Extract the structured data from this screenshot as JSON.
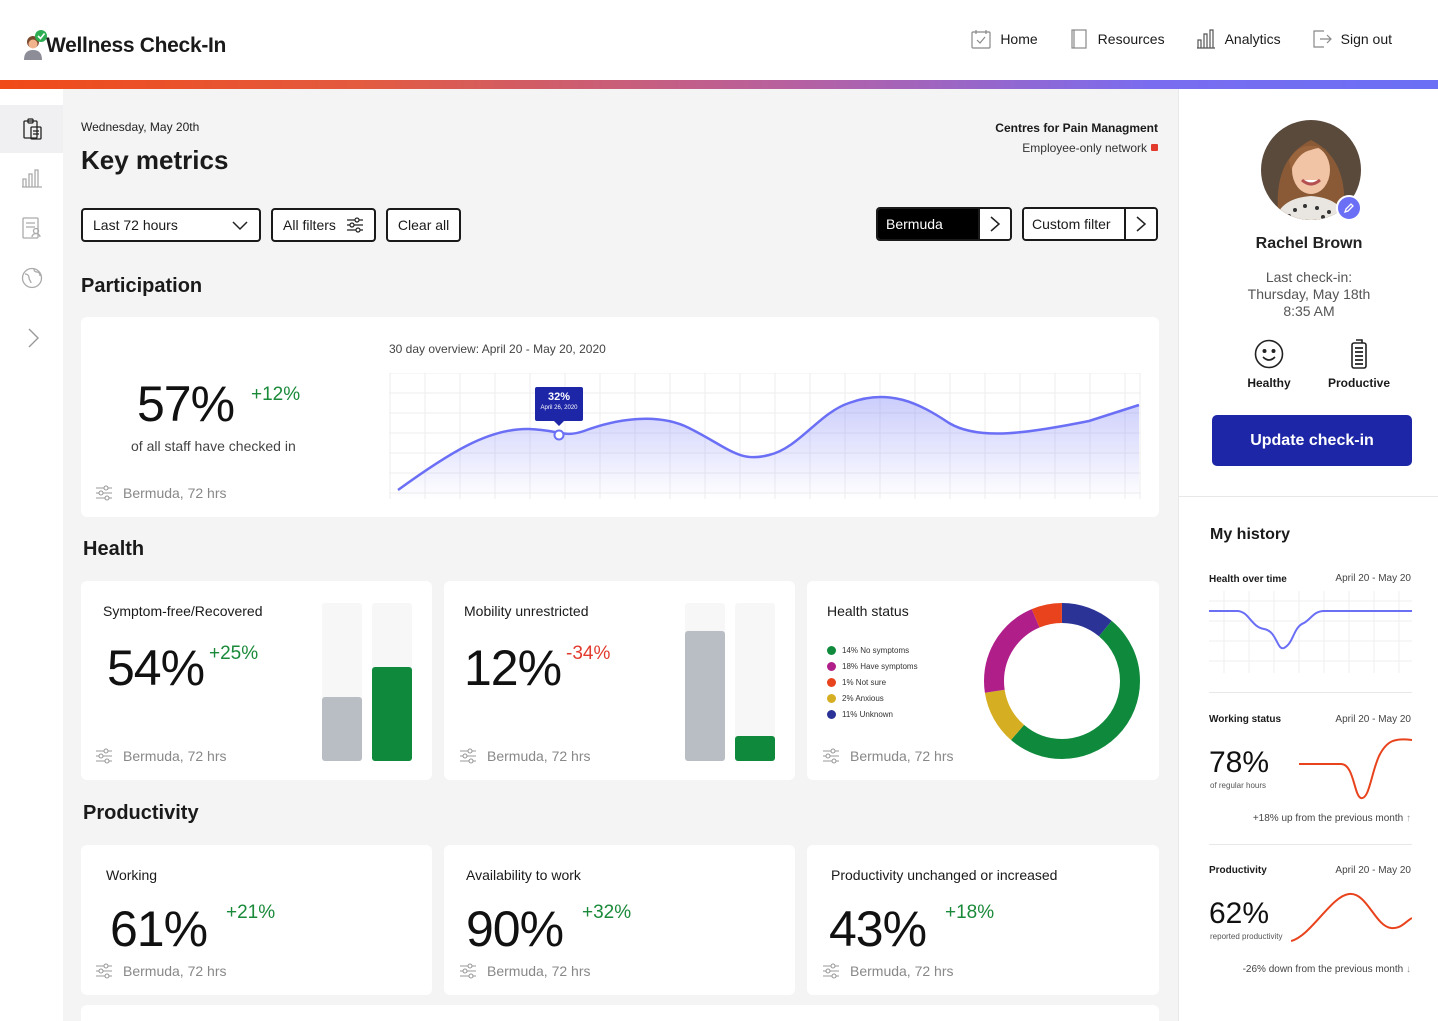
{
  "app": {
    "brand": "Wellness Check-In"
  },
  "topnav": [
    {
      "label": "Home",
      "icon": "calendar-check-icon"
    },
    {
      "label": "Resources",
      "icon": "book-icon"
    },
    {
      "label": "Analytics",
      "icon": "bar-chart-icon"
    },
    {
      "label": "Sign out",
      "icon": "sign-out-icon"
    }
  ],
  "sidebar": [
    {
      "icon": "clipboard-icon",
      "active": true
    },
    {
      "icon": "bar-chart-icon"
    },
    {
      "icon": "report-user-icon"
    },
    {
      "icon": "globe-icon"
    },
    {
      "icon": "chevron-right-icon"
    }
  ],
  "header": {
    "date": "Wednesday, May 20th",
    "title": "Key metrics",
    "org": "Centres for Pain Managment",
    "network": "Employee-only network"
  },
  "filters": {
    "range": "Last 72 hours",
    "all_filters": "All filters",
    "clear_all": "Clear all",
    "location": "Bermuda",
    "custom": "Custom filter"
  },
  "participation": {
    "heading": "Participation",
    "value": "57%",
    "change": "+12%",
    "caption": "of all staff have checked in",
    "footer": "Bermuda, 72 hrs",
    "chart_title": "30 day overview: April 20 - May 20, 2020",
    "tooltip_value": "32%",
    "tooltip_date": "April 26, 2020"
  },
  "health": {
    "heading": "Health",
    "symptom": {
      "title": "Symptom-free/Recovered",
      "value": "54%",
      "change": "+25%",
      "footer": "Bermuda, 72 hrs"
    },
    "mobility": {
      "title": "Mobility unrestricted",
      "value": "12%",
      "change": "-34%",
      "footer": "Bermuda, 72 hrs"
    },
    "status": {
      "title": "Health status",
      "footer": "Bermuda, 72 hrs",
      "legend": [
        {
          "label": "14% No symptoms",
          "color": "#0f8a3c"
        },
        {
          "label": "18% Have symptoms",
          "color": "#b01e8a"
        },
        {
          "label": "1% Not sure",
          "color": "#e8431c"
        },
        {
          "label": "2% Anxious",
          "color": "#d6ae22"
        },
        {
          "label": "11% Unknown",
          "color": "#2b3396"
        }
      ]
    }
  },
  "productivity": {
    "heading": "Productivity",
    "working": {
      "title": "Working",
      "value": "61%",
      "change": "+21%",
      "footer": "Bermuda, 72 hrs"
    },
    "availability": {
      "title": "Availability to work",
      "value": "90%",
      "change": "+32%",
      "footer": "Bermuda, 72 hrs"
    },
    "unchanged": {
      "title": "Productivity unchanged or increased",
      "value": "43%",
      "change": "+18%",
      "footer": "Bermuda, 72 hrs"
    }
  },
  "profile": {
    "name": "Rachel Brown",
    "last_label": "Last check-in:",
    "last_date": "Thursday, May 18th",
    "last_time": "8:35 AM",
    "status1": "Healthy",
    "status2": "Productive",
    "update_btn": "Update check-in"
  },
  "history": {
    "title": "My history",
    "health_label": "Health over time",
    "health_range": "April 20 - May 20",
    "work_label": "Working status",
    "work_range": "April 20 - May 20",
    "work_value": "78%",
    "work_sub": "of regular hours",
    "work_note": "+18% up from the previous month",
    "prod_label": "Productivity",
    "prod_range": "April 20 - May 20",
    "prod_value": "62%",
    "prod_sub": "reported productivity",
    "prod_note": "-26% down from the previous month"
  },
  "colors": {
    "accent": "#6a6ff5",
    "primary": "#1d26a6",
    "positive": "#1a8a3a",
    "negative": "#e23b2e"
  }
}
